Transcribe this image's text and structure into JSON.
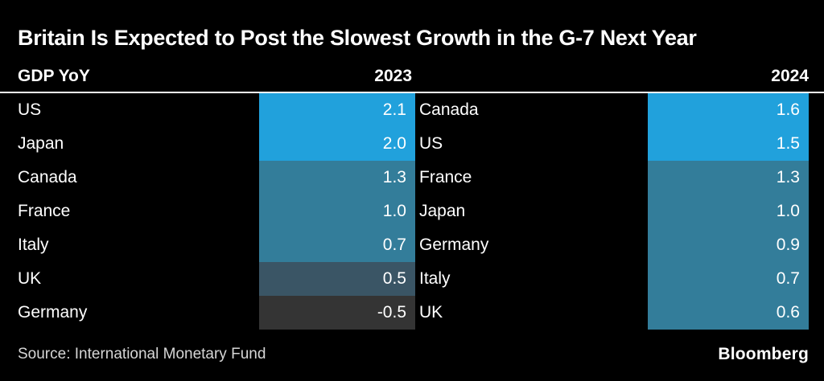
{
  "title": "Britain Is Expected to Post the Slowest Growth in the G-7 Next Year",
  "header": {
    "metric_label": "GDP YoY",
    "left_year": "2023",
    "right_year": "2024"
  },
  "footer": {
    "source": "Source: International Monetary Fund",
    "brand": "Bloomberg"
  },
  "colors": {
    "background": "#000000",
    "text": "#FFFFFF",
    "source_text": "#D6D6D6",
    "high_blue": "#21A1DC",
    "mid_teal": "#337D9A",
    "low_slate": "#3A5565",
    "negative_gray": "#343434",
    "rule_white": "#FFFFFF"
  },
  "chart_data": {
    "type": "table",
    "title": "Britain Is Expected to Post the Slowest Growth in the G-7 Next Year",
    "metric": "GDP YoY",
    "source": "Source: International Monetary Fund",
    "brand": "Bloomberg",
    "tables": [
      {
        "year": "2023",
        "rows": [
          {
            "country": "US",
            "value": "2.1",
            "color": "#21A1DC"
          },
          {
            "country": "Japan",
            "value": "2.0",
            "color": "#21A1DC"
          },
          {
            "country": "Canada",
            "value": "1.3",
            "color": "#337D9A"
          },
          {
            "country": "France",
            "value": "1.0",
            "color": "#337D9A"
          },
          {
            "country": "Italy",
            "value": "0.7",
            "color": "#337D9A"
          },
          {
            "country": "UK",
            "value": "0.5",
            "color": "#3A5565"
          },
          {
            "country": "Germany",
            "value": "-0.5",
            "color": "#343434"
          }
        ]
      },
      {
        "year": "2024",
        "rows": [
          {
            "country": "Canada",
            "value": "1.6",
            "color": "#21A1DC"
          },
          {
            "country": "US",
            "value": "1.5",
            "color": "#21A1DC"
          },
          {
            "country": "France",
            "value": "1.3",
            "color": "#337D9A"
          },
          {
            "country": "Japan",
            "value": "1.0",
            "color": "#337D9A"
          },
          {
            "country": "Germany",
            "value": "0.9",
            "color": "#337D9A"
          },
          {
            "country": "Italy",
            "value": "0.7",
            "color": "#337D9A"
          },
          {
            "country": "UK",
            "value": "0.6",
            "color": "#337D9A"
          }
        ]
      }
    ]
  }
}
